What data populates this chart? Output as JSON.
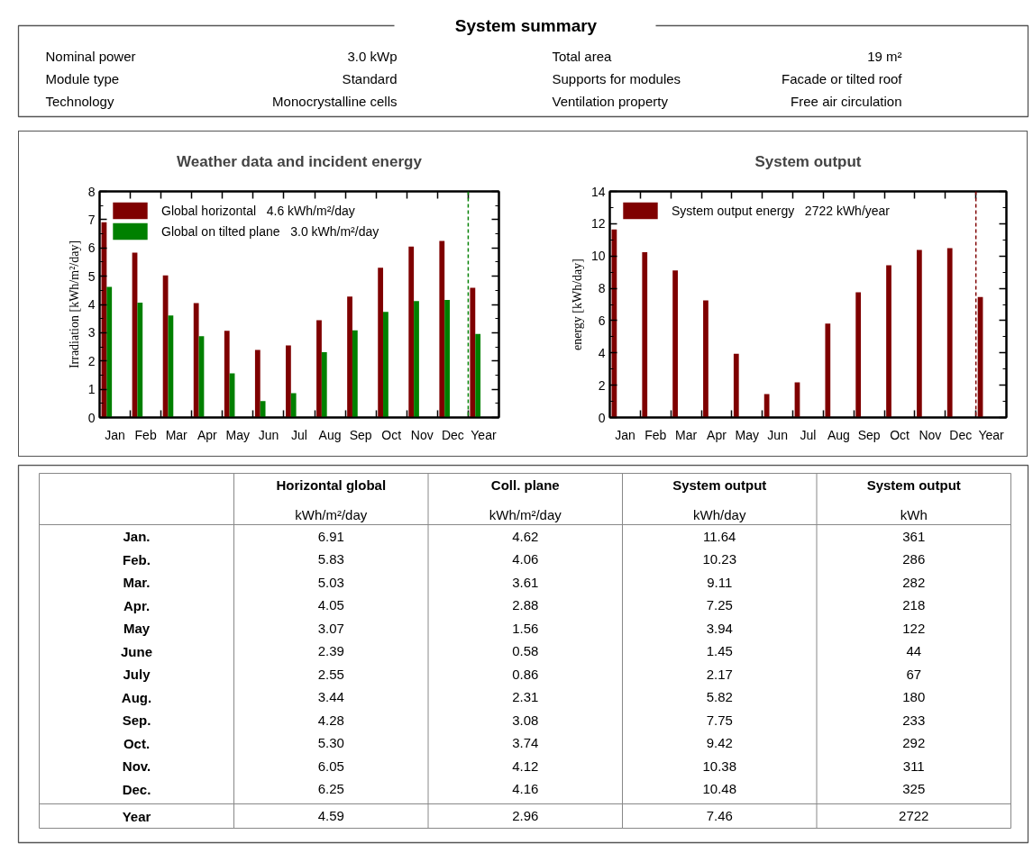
{
  "chart_data": [
    {
      "type": "other",
      "title": "System summary",
      "annotations": [
        "Nominal power",
        "3.0 kWp",
        "Total area",
        "19 m²",
        "Module type",
        "Standard",
        "Supports for modules",
        "Facade or tilted roof",
        "Technology",
        "Monocrystalline cells",
        "Ventilation property",
        "Free air circulation"
      ]
    },
    {
      "type": "bar",
      "title": "Weather data and incident energy",
      "ylabel": "Irradiation [kWh/m²/day]",
      "categories": [
        "Jan",
        "Feb",
        "Mar",
        "Apr",
        "May",
        "Jun",
        "Jul",
        "Aug",
        "Sep",
        "Oct",
        "Nov",
        "Dec",
        "Year"
      ],
      "series": [
        {
          "name": "Global horizontal   4.6 kWh/m²/day",
          "color": "#7f0000",
          "values": [
            6.91,
            5.83,
            5.03,
            4.05,
            3.07,
            2.39,
            2.55,
            3.44,
            4.28,
            5.3,
            6.05,
            6.25,
            4.59
          ]
        },
        {
          "name": "Global on tilted plane   3.0 kWh/m²/day",
          "color": "#008000",
          "values": [
            4.62,
            4.06,
            3.61,
            2.88,
            1.56,
            0.58,
            0.86,
            2.31,
            3.08,
            3.74,
            4.12,
            4.16,
            2.96
          ]
        }
      ],
      "ylim": [
        0,
        8
      ],
      "yticks": [
        0,
        1,
        2,
        3,
        4,
        5,
        6,
        7,
        8
      ],
      "legend": "top left",
      "ref_lines": [
        {
          "axis": "x",
          "value": "Year",
          "color": "#008000",
          "line_style": "dashed"
        }
      ]
    },
    {
      "type": "bar",
      "title": "System output",
      "ylabel": "energy [kWh/day]",
      "categories": [
        "Jan",
        "Feb",
        "Mar",
        "Apr",
        "May",
        "Jun",
        "Jul",
        "Aug",
        "Sep",
        "Oct",
        "Nov",
        "Dec",
        "Year"
      ],
      "series": [
        {
          "name": "System output energy   2722 kWh/year",
          "color": "#7f0000",
          "values": [
            11.64,
            10.23,
            9.11,
            7.25,
            3.94,
            1.45,
            2.17,
            5.82,
            7.75,
            9.42,
            10.38,
            10.48,
            7.46
          ]
        }
      ],
      "ylim": [
        0,
        14
      ],
      "yticks": [
        0,
        2,
        4,
        6,
        8,
        10,
        12,
        14
      ],
      "legend": "top left",
      "ref_lines": [
        {
          "axis": "x",
          "value": "Year",
          "color": "#7f0000",
          "line_style": "dashed"
        }
      ]
    },
    {
      "type": "other",
      "data_labels": true,
      "categories": [
        "Jan.",
        "Feb.",
        "Mar.",
        "Apr.",
        "May",
        "June",
        "July",
        "Aug.",
        "Sep.",
        "Oct.",
        "Nov.",
        "Dec.",
        "Year"
      ],
      "series": [
        {
          "name": "Horizontal global",
          "values": [
            6.91,
            5.83,
            5.03,
            4.05,
            3.07,
            2.39,
            2.55,
            3.44,
            4.28,
            5.3,
            6.05,
            6.25,
            4.59
          ],
          "value_labels": [
            "6.91",
            "5.83",
            "5.03",
            "4.05",
            "3.07",
            "2.39",
            "2.55",
            "3.44",
            "4.28",
            "5.30",
            "6.05",
            "6.25",
            "4.59"
          ]
        },
        {
          "name": "Coll. plane",
          "values": [
            4.62,
            4.06,
            3.61,
            2.88,
            1.56,
            0.58,
            0.86,
            2.31,
            3.08,
            3.74,
            4.12,
            4.16,
            2.96
          ]
        },
        {
          "name": "System output",
          "values": [
            11.64,
            10.23,
            9.11,
            7.25,
            3.94,
            1.45,
            2.17,
            5.82,
            7.75,
            9.42,
            10.38,
            10.48,
            7.46
          ]
        },
        {
          "name": "System output",
          "values": [
            361,
            286,
            282,
            218,
            122,
            44,
            67,
            180,
            233,
            292,
            311,
            325,
            2722
          ]
        }
      ],
      "annotations": [
        "kWh/m²/day",
        "kWh/m²/day",
        "kWh/day",
        "kWh"
      ]
    }
  ]
}
